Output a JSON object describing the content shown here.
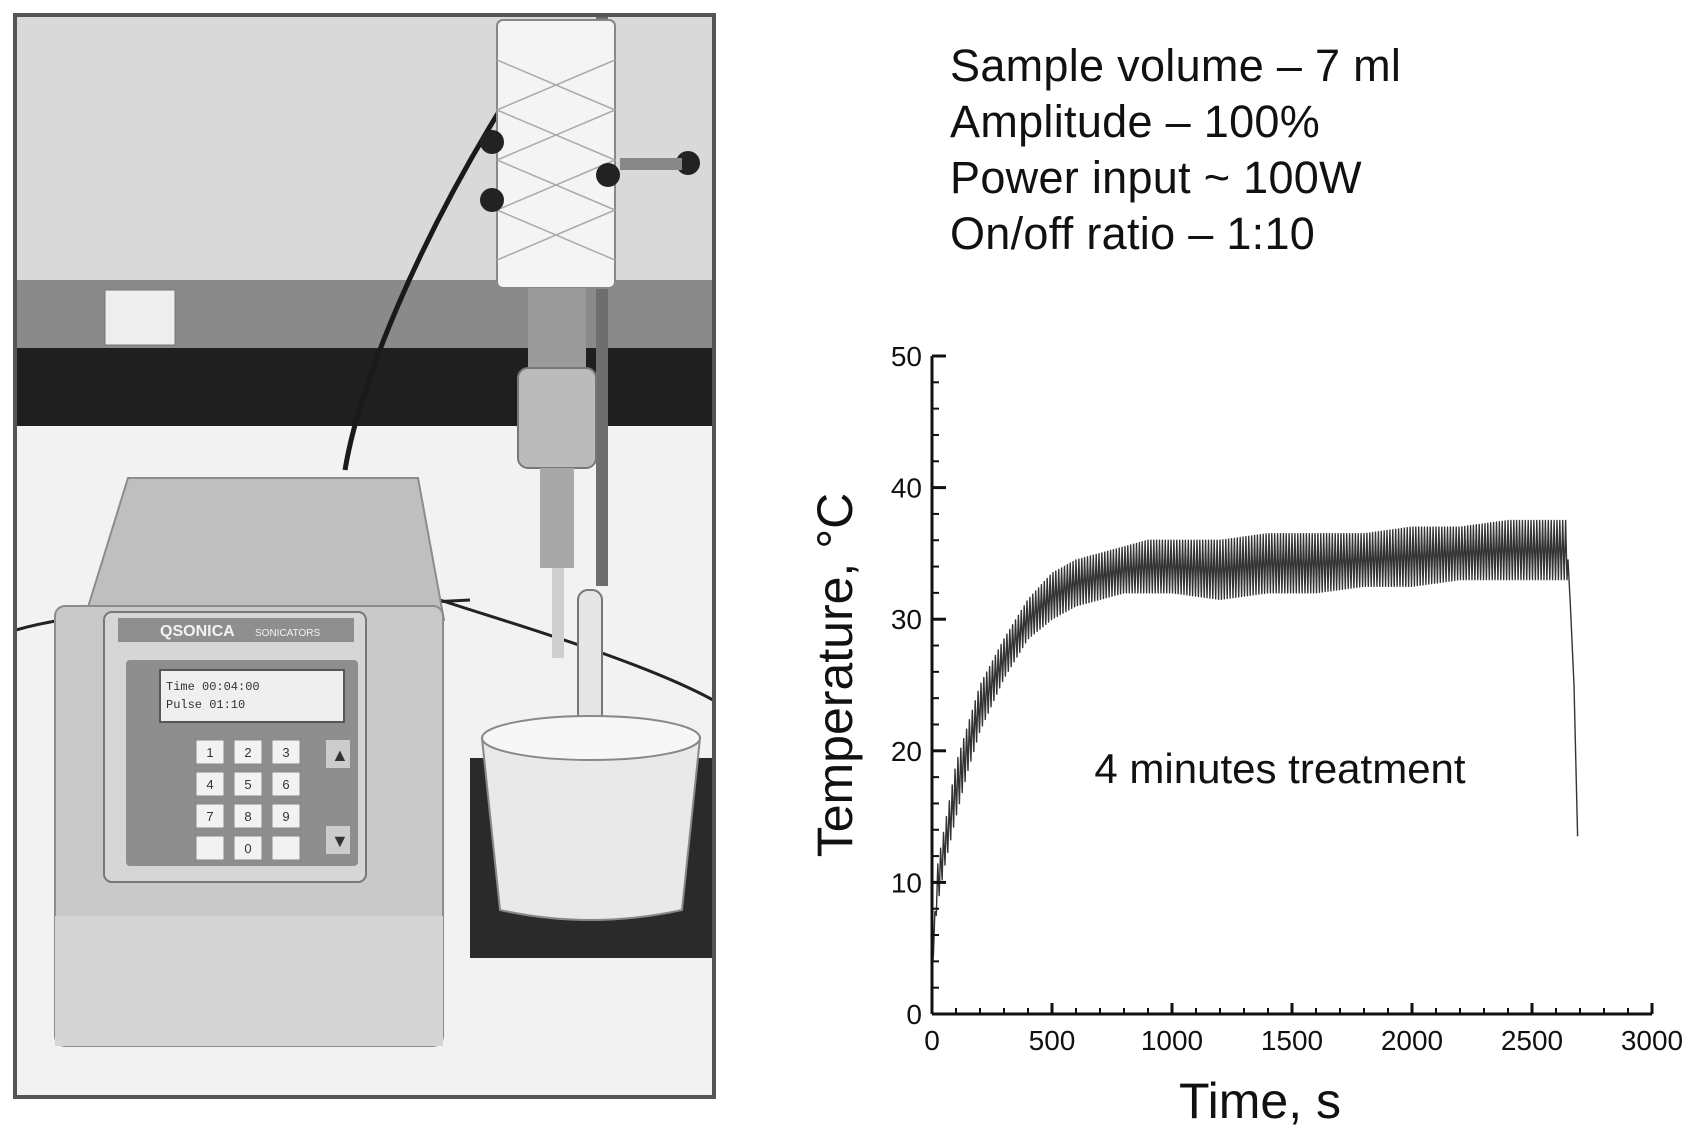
{
  "photo": {
    "description_icon": "sonicator-apparatus-photo",
    "device_brand": "QSONICA",
    "device_sub": "SONICATORS",
    "display_line1": "Time 00:04:00",
    "display_line2": "Pulse 01:10",
    "keypad_keys": [
      "1",
      "2",
      "3",
      "4",
      "5",
      "6",
      "7",
      "8",
      "9",
      "",
      "0",
      ""
    ],
    "arrow_up": "▲",
    "arrow_down": "▼"
  },
  "parameters": [
    "Sample volume – 7 ml",
    "Amplitude – 100%",
    "Power input ~ 100W",
    "On/off ratio – 1:10"
  ],
  "chart_data": {
    "type": "line",
    "title": "",
    "xlabel": "Time, s",
    "ylabel": "Temperature, °C",
    "xlim": [
      0,
      3000
    ],
    "ylim": [
      0,
      50
    ],
    "xticks": [
      0,
      500,
      1000,
      1500,
      2000,
      2500,
      3000
    ],
    "yticks": [
      0,
      10,
      20,
      30,
      40,
      50
    ],
    "grid": false,
    "annotation": "4 minutes treatment",
    "series": [
      {
        "color": "#333333",
        "envelope_upper": [
          [
            0,
            3
          ],
          [
            20,
            11
          ],
          [
            50,
            14
          ],
          [
            100,
            19
          ],
          [
            150,
            22
          ],
          [
            200,
            25
          ],
          [
            300,
            28.5
          ],
          [
            400,
            31.5
          ],
          [
            500,
            33.5
          ],
          [
            600,
            34.5
          ],
          [
            700,
            35
          ],
          [
            800,
            35.5
          ],
          [
            900,
            36
          ],
          [
            1000,
            36
          ],
          [
            1200,
            36
          ],
          [
            1400,
            36.5
          ],
          [
            1600,
            36.5
          ],
          [
            1800,
            36.5
          ],
          [
            2000,
            37
          ],
          [
            2200,
            37
          ],
          [
            2400,
            37.5
          ],
          [
            2600,
            37.5
          ],
          [
            2650,
            37.5
          ]
        ],
        "envelope_lower": [
          [
            0,
            3
          ],
          [
            20,
            8
          ],
          [
            50,
            11
          ],
          [
            100,
            15
          ],
          [
            150,
            18.5
          ],
          [
            200,
            21.5
          ],
          [
            300,
            25.5
          ],
          [
            400,
            28.5
          ],
          [
            500,
            30
          ],
          [
            600,
            31
          ],
          [
            700,
            31.5
          ],
          [
            800,
            32
          ],
          [
            900,
            32
          ],
          [
            1000,
            32
          ],
          [
            1200,
            31.5
          ],
          [
            1400,
            32
          ],
          [
            1600,
            32
          ],
          [
            1800,
            32.5
          ],
          [
            2000,
            32.5
          ],
          [
            2200,
            33
          ],
          [
            2400,
            33
          ],
          [
            2600,
            33
          ],
          [
            2650,
            33
          ]
        ],
        "cooldown": [
          [
            2650,
            34.5
          ],
          [
            2660,
            31
          ],
          [
            2675,
            25
          ],
          [
            2690,
            13.5
          ]
        ]
      }
    ]
  },
  "colors": {
    "axis": "#111111",
    "photo_frame": "#555555",
    "wall": "#d8d8d8",
    "bench": "#f3f3f3"
  }
}
